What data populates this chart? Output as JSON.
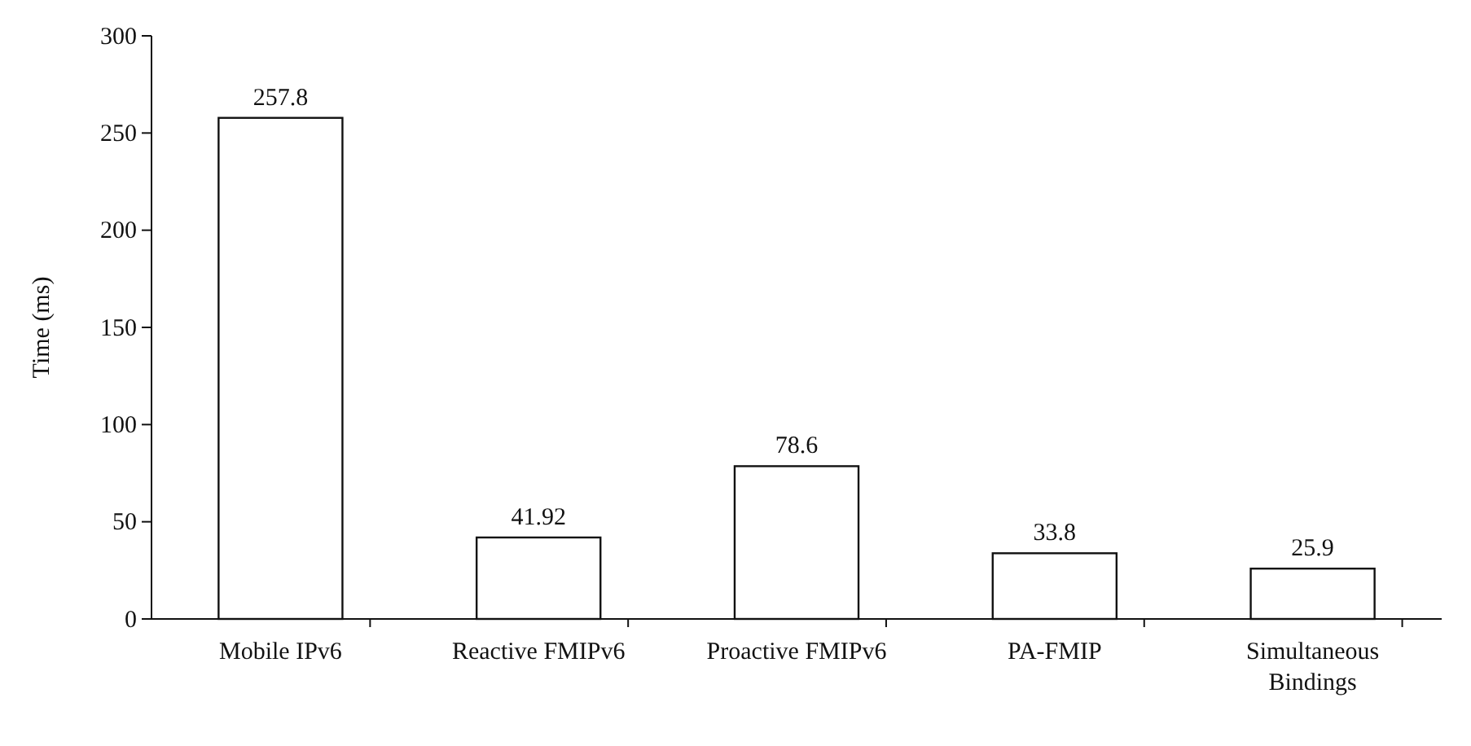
{
  "chart_data": {
    "type": "bar",
    "ylabel": "Time (ms)",
    "categories": [
      "Mobile IPv6",
      "Reactive FMIPv6",
      "Proactive FMIPv6",
      "PA-FMIP",
      "Simultaneous Bindings"
    ],
    "values": [
      257.8,
      41.92,
      78.6,
      33.8,
      25.9
    ],
    "color": "#ffffff",
    "ylim": [
      0,
      300
    ],
    "yticks": [
      0,
      50,
      100,
      150,
      200,
      250,
      300
    ],
    "data_labels": true,
    "grid": false
  }
}
